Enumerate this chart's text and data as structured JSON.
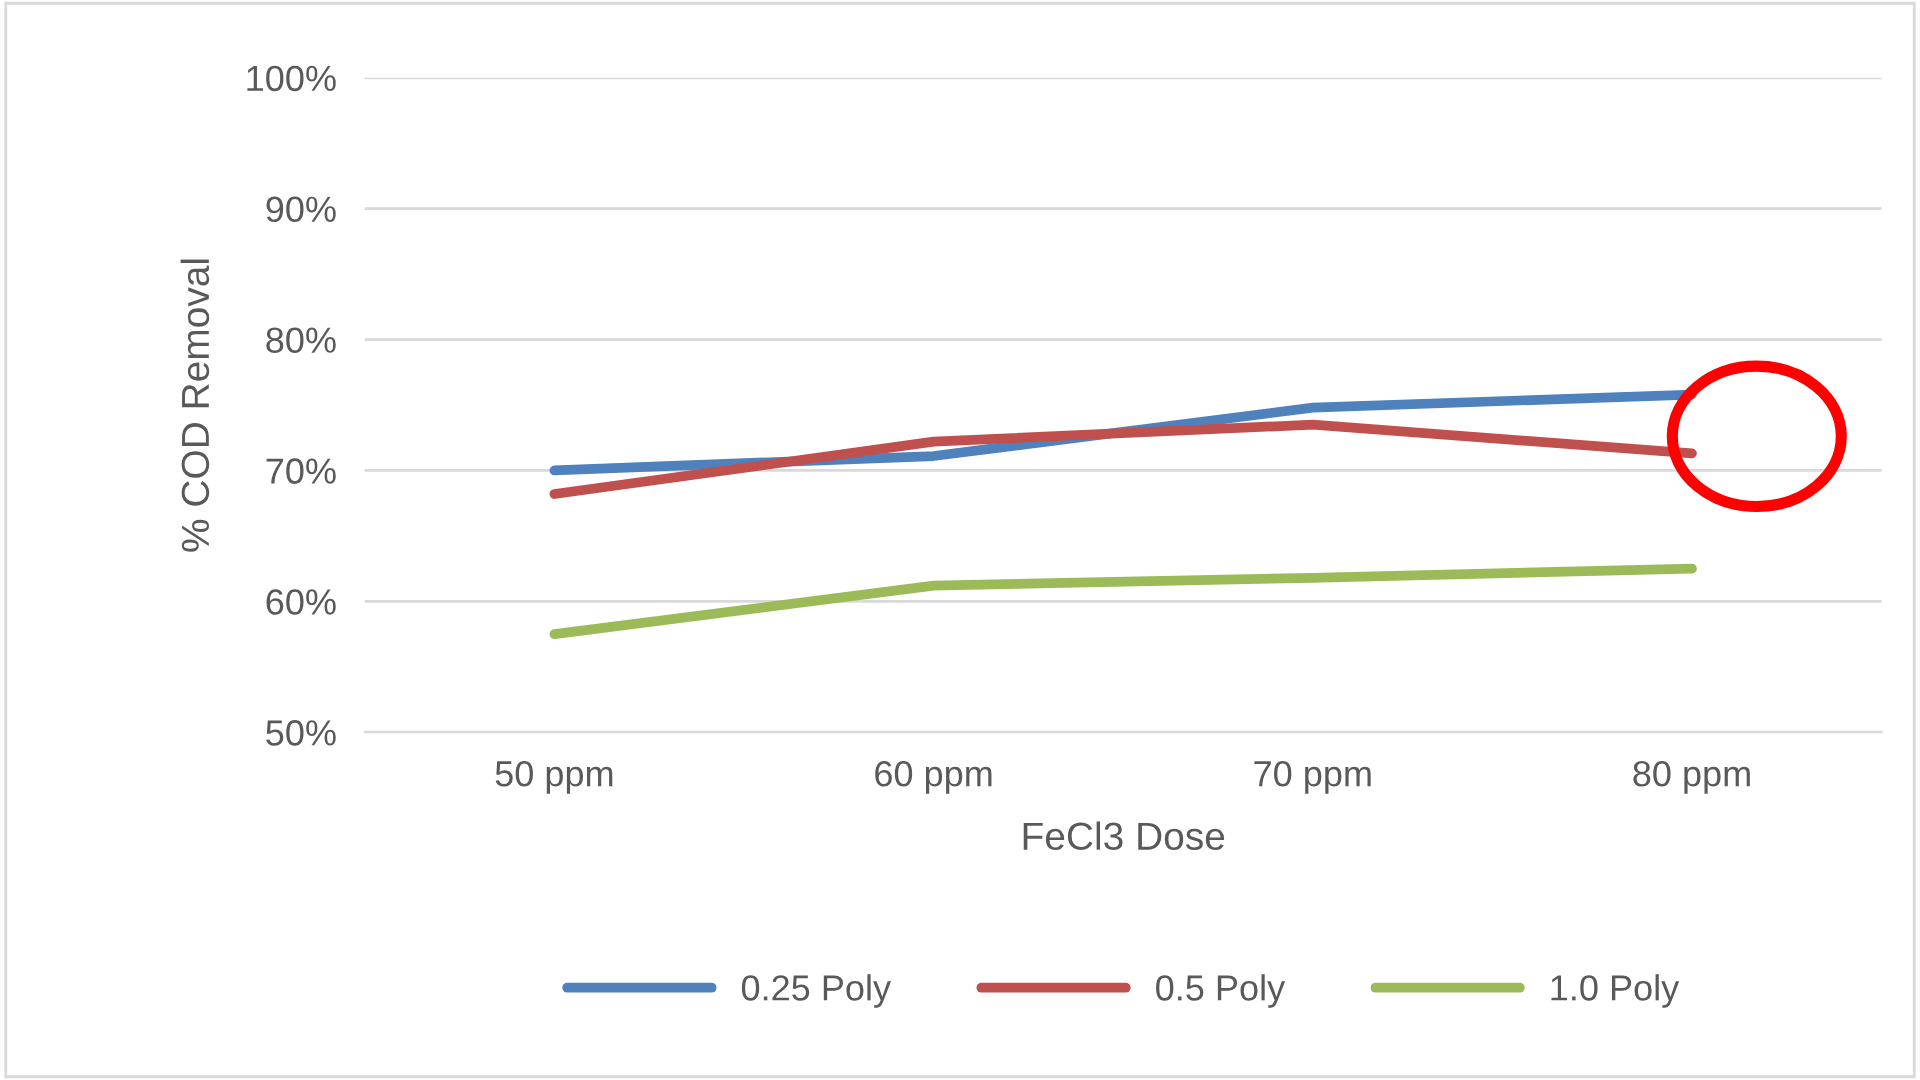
{
  "chart_data": {
    "type": "line",
    "xlabel": "FeCl3 Dose",
    "ylabel": "% COD Removal",
    "categories": [
      "50 ppm",
      "60 ppm",
      "70 ppm",
      "80 ppm"
    ],
    "series": [
      {
        "name": "0.25 Poly",
        "color": "#4f81bd",
        "values": [
          70.0,
          71.1,
          74.8,
          75.8
        ]
      },
      {
        "name": "0.5 Poly",
        "color": "#c0504d",
        "values": [
          68.2,
          72.2,
          73.5,
          71.3
        ]
      },
      {
        "name": "1.0 Poly",
        "color": "#9bbb59",
        "values": [
          57.5,
          61.2,
          61.8,
          62.5
        ]
      }
    ],
    "ylim": [
      50,
      100
    ],
    "yticks": [
      {
        "value": 50,
        "label": "50%"
      },
      {
        "value": 60,
        "label": "60%"
      },
      {
        "value": 70,
        "label": "70%"
      },
      {
        "value": 80,
        "label": "80%"
      },
      {
        "value": 90,
        "label": "90%"
      },
      {
        "value": 100,
        "label": "100%"
      }
    ],
    "grid": "y",
    "legend": "bottom",
    "marker": "none",
    "line_style": "solid"
  }
}
